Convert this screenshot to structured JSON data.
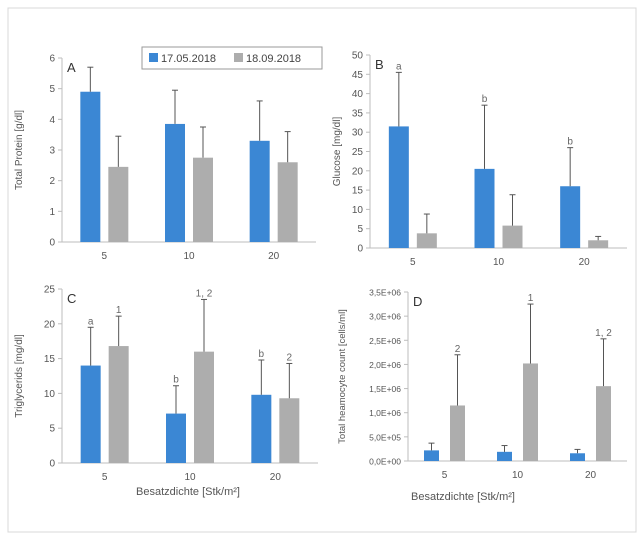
{
  "legend": {
    "items": [
      {
        "label": "17.05.2018",
        "color": "#3b87d4"
      },
      {
        "label": "18.09.2018",
        "color": "#adadad"
      }
    ]
  },
  "colors": {
    "series_a": "#3b87d4",
    "series_b": "#adadad",
    "error_bar": "#555555",
    "axis": "#bdbdbd",
    "text": "#555555"
  },
  "chart_data": [
    {
      "type": "bar",
      "panel_letter": "A",
      "categories": [
        "5",
        "10",
        "20"
      ],
      "ylabel": "Total Protein [g/dl]",
      "xlabel": "",
      "ylim": [
        0,
        6
      ],
      "yticks": [
        "0",
        "1",
        "2",
        "3",
        "4",
        "5",
        "6"
      ],
      "series": [
        {
          "name": "17.05.2018",
          "values": [
            4.9,
            3.85,
            3.3
          ],
          "errors": [
            0.8,
            1.1,
            1.3
          ],
          "letters": [
            "",
            "",
            ""
          ]
        },
        {
          "name": "18.09.2018",
          "values": [
            2.45,
            2.75,
            2.6
          ],
          "errors": [
            1.0,
            1.0,
            1.0
          ],
          "letters": [
            "",
            "",
            ""
          ]
        }
      ]
    },
    {
      "type": "bar",
      "panel_letter": "B",
      "categories": [
        "5",
        "10",
        "20"
      ],
      "ylabel": "Glucose [mg/dl]",
      "xlabel": "",
      "ylim": [
        0,
        50
      ],
      "yticks": [
        "0",
        "5",
        "10",
        "15",
        "20",
        "25",
        "30",
        "35",
        "40",
        "45",
        "50"
      ],
      "series": [
        {
          "name": "17.05.2018",
          "values": [
            31.5,
            20.5,
            16.0
          ],
          "errors": [
            14.0,
            16.5,
            10.0
          ],
          "letters": [
            "a",
            "b",
            "b"
          ]
        },
        {
          "name": "18.09.2018",
          "values": [
            3.8,
            5.8,
            2.0
          ],
          "errors": [
            5.0,
            8.0,
            1.0
          ],
          "letters": [
            "",
            "",
            ""
          ]
        }
      ]
    },
    {
      "type": "bar",
      "panel_letter": "C",
      "categories": [
        "5",
        "10",
        "20"
      ],
      "ylabel": "Triglycerids [mg/dl]",
      "xlabel": "Besatzdichte [Stk/m²]",
      "ylim": [
        0,
        25
      ],
      "yticks": [
        "0",
        "5",
        "10",
        "15",
        "20",
        "25"
      ],
      "series": [
        {
          "name": "17.05.2018",
          "values": [
            14.0,
            7.1,
            9.8
          ],
          "errors": [
            5.5,
            4.0,
            5.0
          ],
          "letters": [
            "a",
            "b",
            "b"
          ]
        },
        {
          "name": "18.09.2018",
          "values": [
            16.8,
            16.0,
            9.3
          ],
          "errors": [
            4.3,
            7.5,
            5.0
          ],
          "letters": [
            "1",
            "1, 2",
            "2"
          ]
        }
      ]
    },
    {
      "type": "bar",
      "panel_letter": "D",
      "categories": [
        "5",
        "10",
        "20"
      ],
      "ylabel": "Total heamocyte count [cells/ml]",
      "xlabel": "Besatzdichte [Stk/m²]",
      "ylim": [
        0,
        3500000
      ],
      "yticks": [
        "0,0E+00",
        "5,0E+05",
        "1,0E+06",
        "1,5E+06",
        "2,0E+06",
        "2,5E+06",
        "3,0E+06",
        "3,5E+06"
      ],
      "series": [
        {
          "name": "17.05.2018",
          "values": [
            220000,
            190000,
            160000
          ],
          "errors": [
            150000,
            130000,
            80000
          ],
          "letters": [
            "",
            "",
            ""
          ]
        },
        {
          "name": "18.09.2018",
          "values": [
            1150000,
            2020000,
            1550000
          ],
          "errors": [
            1050000,
            1230000,
            980000
          ],
          "letters": [
            "2",
            "1",
            "1, 2"
          ]
        }
      ]
    }
  ]
}
